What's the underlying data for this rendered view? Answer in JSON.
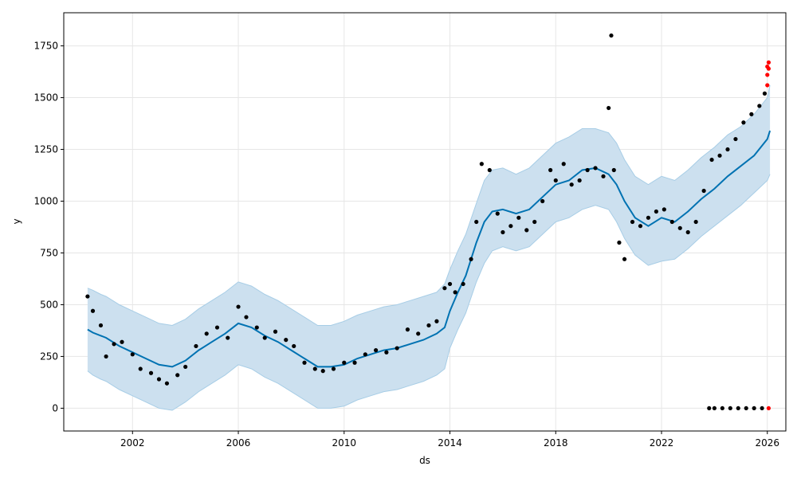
{
  "chart_data": {
    "type": "line",
    "title": "",
    "xlabel": "ds",
    "ylabel": "y",
    "xlim": [
      1999.4,
      2026.7
    ],
    "ylim": [
      -110,
      1910
    ],
    "grid": true,
    "legend": "none",
    "x_ticks": [
      2002,
      2006,
      2010,
      2014,
      2018,
      2022,
      2026
    ],
    "x_tick_labels": [
      "2002",
      "2006",
      "2010",
      "2014",
      "2018",
      "2022",
      "2026"
    ],
    "y_ticks": [
      0,
      250,
      500,
      750,
      1000,
      1250,
      1500,
      1750
    ],
    "y_tick_labels": [
      "0",
      "250",
      "500",
      "750",
      "1000",
      "1250",
      "1500",
      "1750"
    ],
    "colors": {
      "forecast": "#0072B2",
      "band_fill": "#cce0ef",
      "band_edge": "#a7cde6",
      "observed": "#000000",
      "future": "#ff0000",
      "grid": "#e6e6e6"
    },
    "forecast": {
      "x": [
        2000.3,
        2000.5,
        2000.8,
        2001.0,
        2001.5,
        2002.0,
        2002.5,
        2003.0,
        2003.5,
        2004.0,
        2004.5,
        2005.0,
        2005.5,
        2006.0,
        2006.5,
        2007.0,
        2007.5,
        2008.0,
        2008.5,
        2009.0,
        2009.5,
        2010.0,
        2010.5,
        2011.0,
        2011.5,
        2012.0,
        2012.5,
        2013.0,
        2013.5,
        2013.8,
        2014.0,
        2014.3,
        2014.6,
        2015.0,
        2015.3,
        2015.6,
        2016.0,
        2016.5,
        2017.0,
        2017.5,
        2018.0,
        2018.5,
        2019.0,
        2019.5,
        2020.0,
        2020.3,
        2020.6,
        2021.0,
        2021.5,
        2022.0,
        2022.5,
        2023.0,
        2023.5,
        2024.0,
        2024.5,
        2025.0,
        2025.5,
        2026.0,
        2026.1
      ],
      "yhat": [
        380,
        365,
        350,
        340,
        300,
        270,
        240,
        210,
        200,
        230,
        280,
        320,
        360,
        410,
        390,
        350,
        320,
        280,
        240,
        200,
        200,
        210,
        240,
        260,
        280,
        290,
        310,
        330,
        360,
        390,
        470,
        560,
        640,
        800,
        900,
        950,
        960,
        940,
        960,
        1020,
        1080,
        1100,
        1150,
        1160,
        1130,
        1080,
        1000,
        920,
        880,
        920,
        900,
        950,
        1010,
        1060,
        1120,
        1170,
        1220,
        1300,
        1340
      ],
      "yhat_lower": [
        180,
        160,
        140,
        130,
        90,
        60,
        30,
        0,
        -10,
        30,
        80,
        120,
        160,
        210,
        190,
        150,
        120,
        80,
        40,
        0,
        0,
        10,
        40,
        60,
        80,
        90,
        110,
        130,
        160,
        190,
        290,
        380,
        460,
        610,
        700,
        760,
        780,
        760,
        780,
        840,
        900,
        920,
        960,
        980,
        960,
        900,
        820,
        740,
        690,
        710,
        720,
        770,
        830,
        880,
        930,
        980,
        1040,
        1100,
        1130
      ],
      "yhat_upper": [
        580,
        570,
        550,
        540,
        500,
        470,
        440,
        410,
        400,
        430,
        480,
        520,
        560,
        610,
        590,
        550,
        520,
        480,
        440,
        400,
        400,
        420,
        450,
        470,
        490,
        500,
        520,
        540,
        560,
        600,
        670,
        760,
        840,
        990,
        1100,
        1150,
        1160,
        1130,
        1160,
        1220,
        1280,
        1310,
        1350,
        1350,
        1330,
        1280,
        1200,
        1120,
        1080,
        1120,
        1100,
        1150,
        1210,
        1260,
        1320,
        1360,
        1420,
        1500,
        1560
      ]
    },
    "observed": {
      "x": [
        2000.3,
        2000.5,
        2000.8,
        2001.0,
        2001.3,
        2001.6,
        2002.0,
        2002.3,
        2002.7,
        2003.0,
        2003.3,
        2003.7,
        2004.0,
        2004.4,
        2004.8,
        2005.2,
        2005.6,
        2006.0,
        2006.3,
        2006.7,
        2007.0,
        2007.4,
        2007.8,
        2008.1,
        2008.5,
        2008.9,
        2009.2,
        2009.6,
        2010.0,
        2010.4,
        2010.8,
        2011.2,
        2011.6,
        2012.0,
        2012.4,
        2012.8,
        2013.2,
        2013.5,
        2013.8,
        2014.0,
        2014.2,
        2014.5,
        2014.8,
        2015.0,
        2015.2,
        2015.5,
        2015.8,
        2016.0,
        2016.3,
        2016.6,
        2016.9,
        2017.2,
        2017.5,
        2017.8,
        2018.0,
        2018.3,
        2018.6,
        2018.9,
        2019.2,
        2019.5,
        2019.8,
        2020.0,
        2020.1,
        2020.2,
        2020.4,
        2020.6,
        2020.9,
        2021.2,
        2021.5,
        2021.8,
        2022.1,
        2022.4,
        2022.7,
        2023.0,
        2023.3,
        2023.6,
        2023.9,
        2024.2,
        2024.5,
        2024.8,
        2025.1,
        2025.4,
        2025.7,
        2025.9,
        2023.8,
        2024.0,
        2024.3,
        2024.6,
        2024.9,
        2025.2,
        2025.5,
        2025.8
      ],
      "y": [
        540,
        470,
        400,
        250,
        310,
        320,
        260,
        190,
        170,
        140,
        120,
        160,
        200,
        300,
        360,
        390,
        340,
        490,
        440,
        390,
        340,
        370,
        330,
        300,
        220,
        190,
        180,
        190,
        220,
        220,
        260,
        280,
        270,
        290,
        380,
        360,
        400,
        420,
        580,
        600,
        560,
        600,
        720,
        900,
        1180,
        1150,
        940,
        850,
        880,
        920,
        860,
        900,
        1000,
        1150,
        1100,
        1180,
        1080,
        1100,
        1150,
        1160,
        1120,
        1450,
        1800,
        1150,
        800,
        720,
        900,
        880,
        920,
        950,
        960,
        900,
        870,
        850,
        900,
        1050,
        1200,
        1220,
        1250,
        1300,
        1380,
        1420,
        1460,
        1520,
        0,
        0,
        0,
        0,
        0,
        0,
        0,
        0
      ]
    },
    "future": {
      "x": [
        2026.0,
        2026.0,
        2026.0,
        2026.05,
        2026.05,
        2026.05
      ],
      "y": [
        1650,
        1610,
        1560,
        1670,
        1640,
        0
      ]
    }
  }
}
